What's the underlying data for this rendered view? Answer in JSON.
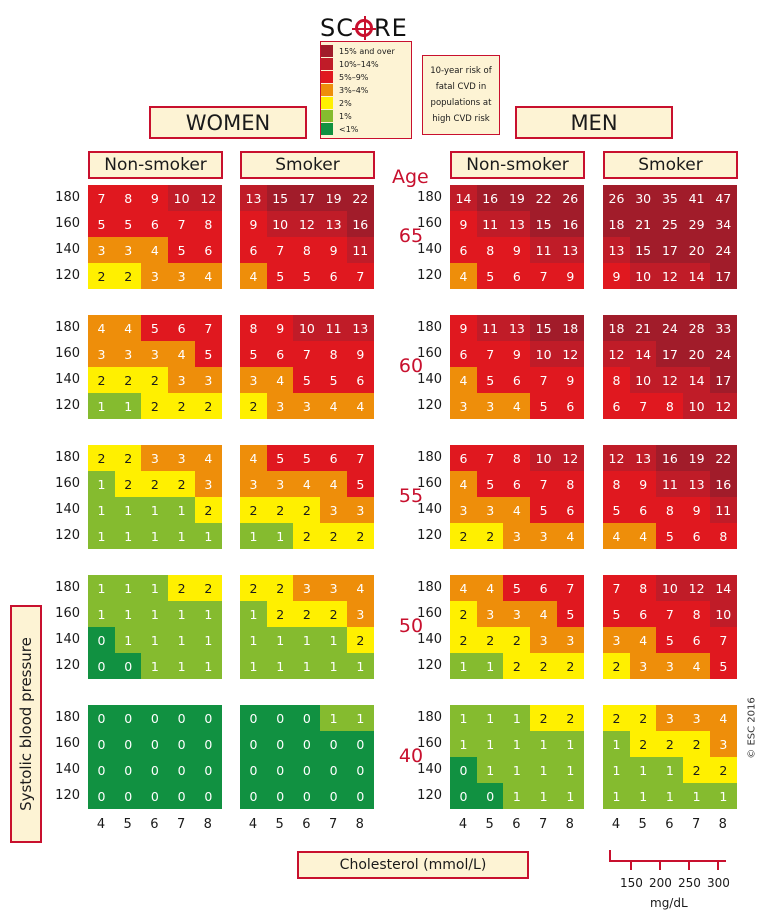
{
  "logo": {
    "prefix": "SC",
    "suffix": "RE"
  },
  "legend": [
    {
      "label": "15% and over",
      "color": "#a11c2a"
    },
    {
      "label": "10%–14%",
      "color": "#c01c28"
    },
    {
      "label": "5%–9%",
      "color": "#e0181f"
    },
    {
      "label": "3%–4%",
      "color": "#ee8e0a"
    },
    {
      "label": "2%",
      "color": "#fff000"
    },
    {
      "label": "1%",
      "color": "#85bb2f"
    },
    {
      "label": "<1%",
      "color": "#119141"
    }
  ],
  "risk_lines": [
    "10-year risk of",
    "fatal CVD in",
    "populations at",
    "high CVD risk"
  ],
  "labels": {
    "women": "WOMEN",
    "men": "MEN",
    "non_smoker": "Non-smoker",
    "smoker": "Smoker",
    "age": "Age",
    "y_title": "Systolic blood pressure",
    "x_title": "Cholesterol (mmol/L)",
    "mgdl": "mg/dL",
    "copyright": "© ESC 2016"
  },
  "chart_data": {
    "type": "heatmap",
    "title": "SCORE",
    "xlabel": "Cholesterol (mmol/L)",
    "ylabel": "Systolic blood pressure",
    "cholesterol_mmol": [
      4,
      5,
      6,
      7,
      8
    ],
    "cholesterol_mgdl": [
      150,
      200,
      250,
      300
    ],
    "sbp": [
      180,
      160,
      140,
      120
    ],
    "ages": [
      65,
      60,
      55,
      50,
      40
    ],
    "groups": [
      {
        "name": "Women Non-smoker",
        "values": [
          [
            [
              7,
              8,
              9,
              10,
              12
            ],
            [
              5,
              5,
              6,
              7,
              8
            ],
            [
              3,
              3,
              4,
              5,
              6
            ],
            [
              2,
              2,
              3,
              3,
              4
            ]
          ],
          [
            [
              4,
              4,
              5,
              6,
              7
            ],
            [
              3,
              3,
              3,
              4,
              5
            ],
            [
              2,
              2,
              2,
              3,
              3
            ],
            [
              1,
              1,
              2,
              2,
              2
            ]
          ],
          [
            [
              2,
              2,
              3,
              3,
              4
            ],
            [
              1,
              2,
              2,
              2,
              3
            ],
            [
              1,
              1,
              1,
              1,
              2
            ],
            [
              1,
              1,
              1,
              1,
              1
            ]
          ],
          [
            [
              1,
              1,
              1,
              2,
              2
            ],
            [
              1,
              1,
              1,
              1,
              1
            ],
            [
              0,
              1,
              1,
              1,
              1
            ],
            [
              0,
              0,
              1,
              1,
              1
            ]
          ],
          [
            [
              0,
              0,
              0,
              0,
              0
            ],
            [
              0,
              0,
              0,
              0,
              0
            ],
            [
              0,
              0,
              0,
              0,
              0
            ],
            [
              0,
              0,
              0,
              0,
              0
            ]
          ]
        ]
      },
      {
        "name": "Women Smoker",
        "values": [
          [
            [
              13,
              15,
              17,
              19,
              22
            ],
            [
              9,
              10,
              12,
              13,
              16
            ],
            [
              6,
              7,
              8,
              9,
              11
            ],
            [
              4,
              5,
              5,
              6,
              7
            ]
          ],
          [
            [
              8,
              9,
              10,
              11,
              13
            ],
            [
              5,
              6,
              7,
              8,
              9
            ],
            [
              3,
              4,
              5,
              5,
              6
            ],
            [
              2,
              3,
              3,
              4,
              4
            ]
          ],
          [
            [
              4,
              5,
              5,
              6,
              7
            ],
            [
              3,
              3,
              4,
              4,
              5
            ],
            [
              2,
              2,
              2,
              3,
              3
            ],
            [
              1,
              1,
              2,
              2,
              2
            ]
          ],
          [
            [
              2,
              2,
              3,
              3,
              4
            ],
            [
              1,
              2,
              2,
              2,
              3
            ],
            [
              1,
              1,
              1,
              1,
              2
            ],
            [
              1,
              1,
              1,
              1,
              1
            ]
          ],
          [
            [
              0,
              0,
              0,
              1,
              1
            ],
            [
              0,
              0,
              0,
              0,
              0
            ],
            [
              0,
              0,
              0,
              0,
              0
            ],
            [
              0,
              0,
              0,
              0,
              0
            ]
          ]
        ]
      },
      {
        "name": "Men Non-smoker",
        "values": [
          [
            [
              14,
              16,
              19,
              22,
              26
            ],
            [
              9,
              11,
              13,
              15,
              16
            ],
            [
              6,
              8,
              9,
              11,
              13
            ],
            [
              4,
              5,
              6,
              7,
              9
            ]
          ],
          [
            [
              9,
              11,
              13,
              15,
              18
            ],
            [
              6,
              7,
              9,
              10,
              12
            ],
            [
              4,
              5,
              6,
              7,
              9
            ],
            [
              3,
              3,
              4,
              5,
              6
            ]
          ],
          [
            [
              6,
              7,
              8,
              10,
              12
            ],
            [
              4,
              5,
              6,
              7,
              8
            ],
            [
              3,
              3,
              4,
              5,
              6
            ],
            [
              2,
              2,
              3,
              3,
              4
            ]
          ],
          [
            [
              4,
              4,
              5,
              6,
              7
            ],
            [
              2,
              3,
              3,
              4,
              5
            ],
            [
              2,
              2,
              2,
              3,
              3
            ],
            [
              1,
              1,
              2,
              2,
              2
            ]
          ],
          [
            [
              1,
              1,
              1,
              2,
              2
            ],
            [
              1,
              1,
              1,
              1,
              1
            ],
            [
              0,
              1,
              1,
              1,
              1
            ],
            [
              0,
              0,
              1,
              1,
              1
            ]
          ]
        ]
      },
      {
        "name": "Men Smoker",
        "values": [
          [
            [
              26,
              30,
              35,
              41,
              47
            ],
            [
              18,
              21,
              25,
              29,
              34
            ],
            [
              13,
              15,
              17,
              20,
              24
            ],
            [
              9,
              10,
              12,
              14,
              17
            ]
          ],
          [
            [
              18,
              21,
              24,
              28,
              33
            ],
            [
              12,
              14,
              17,
              20,
              24
            ],
            [
              8,
              10,
              12,
              14,
              17
            ],
            [
              6,
              7,
              8,
              10,
              12
            ]
          ],
          [
            [
              12,
              13,
              16,
              19,
              22
            ],
            [
              8,
              9,
              11,
              13,
              16
            ],
            [
              5,
              6,
              8,
              9,
              11
            ],
            [
              4,
              4,
              5,
              6,
              8
            ]
          ],
          [
            [
              7,
              8,
              10,
              12,
              14
            ],
            [
              5,
              6,
              7,
              8,
              10
            ],
            [
              3,
              4,
              5,
              6,
              7
            ],
            [
              2,
              3,
              3,
              4,
              5
            ]
          ],
          [
            [
              2,
              2,
              3,
              3,
              4
            ],
            [
              1,
              2,
              2,
              2,
              3
            ],
            [
              1,
              1,
              1,
              2,
              2
            ],
            [
              1,
              1,
              1,
              1,
              1
            ]
          ]
        ]
      }
    ]
  }
}
